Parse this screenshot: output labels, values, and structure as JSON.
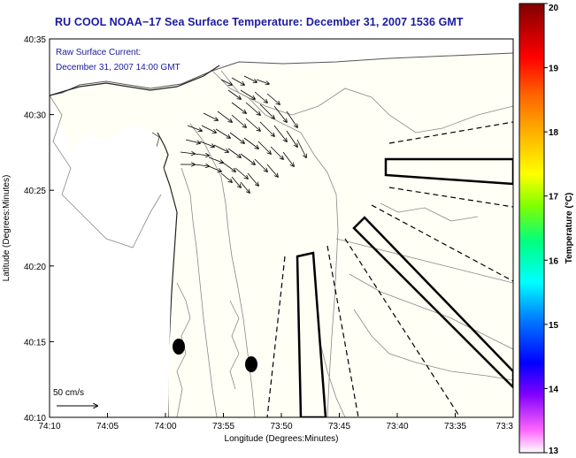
{
  "title": "RU COOL  NOAA−17  Sea Surface Temperature:  December 31, 2007 1536 GMT",
  "current": {
    "label": "Raw Surface Current:",
    "time": "December 31, 2007 14:00 GMT",
    "scale_label": "50 cm/s"
  },
  "axes": {
    "xlabel": "Longitude (Degrees:Minutes)",
    "ylabel": "Latitude (Degrees:Minutes)",
    "xticks": [
      "74:10",
      "74:05",
      "74:00",
      "73:55",
      "73:50",
      "73:45",
      "73:40",
      "73:35",
      "73:3"
    ],
    "yticks": [
      "40:35",
      "40:30",
      "40:25",
      "40:20",
      "40:15",
      "40:10"
    ]
  },
  "colorbar": {
    "label": "Temperature (°C)",
    "ticks": [
      "20",
      "19",
      "18",
      "17",
      "16",
      "15",
      "14",
      "13"
    ],
    "min": 13,
    "max": 20,
    "colors": [
      "#ff00ff",
      "#0000ff",
      "#00ffff",
      "#00ff00",
      "#ffff00",
      "#ff8000",
      "#ff0000",
      "#800000"
    ]
  },
  "colors": {
    "title": "#1a1aa0",
    "land": "#ffffff",
    "ocean": "#fffff6",
    "contour": "#888888"
  }
}
